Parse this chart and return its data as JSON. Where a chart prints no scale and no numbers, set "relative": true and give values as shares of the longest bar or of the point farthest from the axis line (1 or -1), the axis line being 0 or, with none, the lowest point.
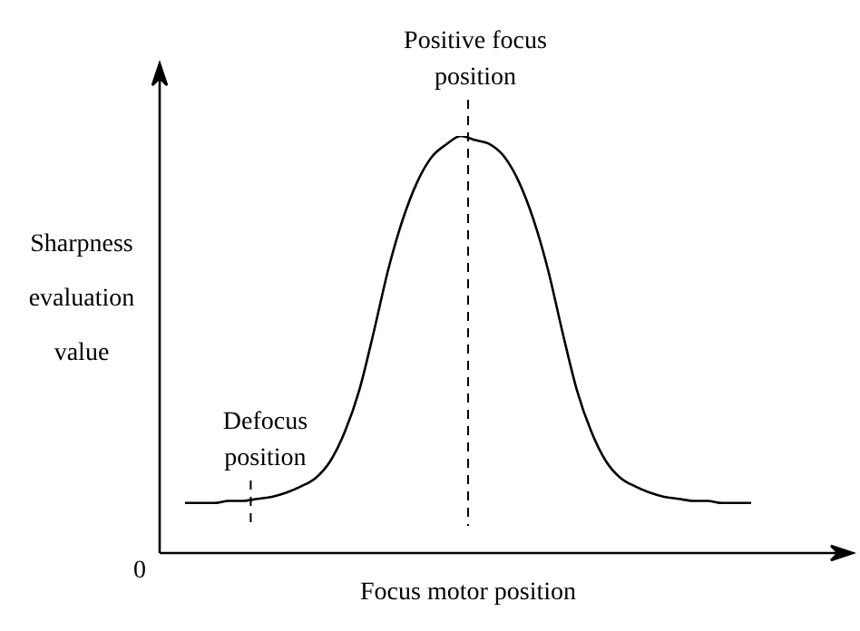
{
  "chart_data": {
    "type": "line",
    "relative": true,
    "xlabel": "Focus motor position",
    "ylabel": "Sharpness evaluation value",
    "categories": [
      null,
      null,
      null,
      null,
      null,
      null,
      null,
      null,
      null,
      null,
      null,
      null,
      null,
      null,
      null,
      null,
      null,
      null,
      null,
      null,
      null,
      null,
      null,
      null,
      null,
      null,
      null,
      null,
      null,
      null,
      null,
      null,
      null,
      null,
      null,
      null,
      null,
      null,
      null,
      null
    ],
    "series": [
      {
        "color": "#000000",
        "values": [
          0.12,
          0.12,
          0.12,
          0.125,
          0.125,
          0.13,
          0.135,
          0.145,
          0.16,
          0.18,
          0.22,
          0.29,
          0.39,
          0.53,
          0.68,
          0.8,
          0.89,
          0.95,
          0.98,
          1,
          0.99,
          0.98,
          0.95,
          0.89,
          0.8,
          0.68,
          0.53,
          0.39,
          0.29,
          0.22,
          0.18,
          0.16,
          0.145,
          0.135,
          0.13,
          0.125,
          0.125,
          0.12,
          0.12,
          0.12
        ]
      }
    ],
    "annotations": [
      "Defocus position",
      "Positive focus position",
      "0"
    ],
    "marker": "none",
    "line_style": "solid"
  }
}
